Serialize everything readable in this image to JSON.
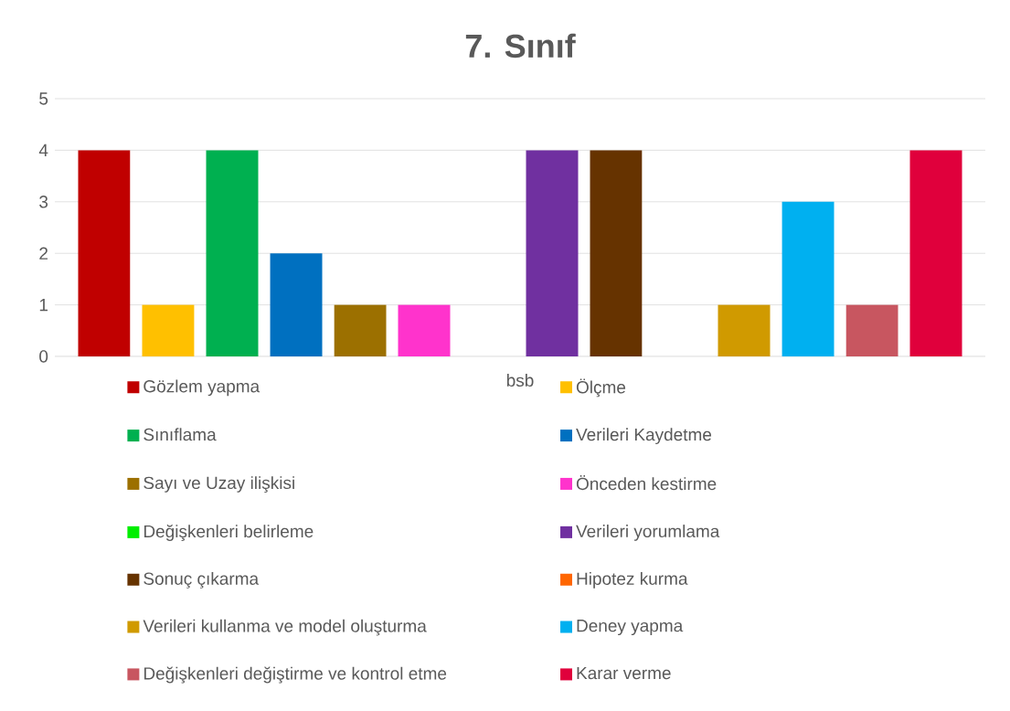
{
  "chart_data": {
    "type": "bar",
    "title": "7. Sınıf",
    "categories": [
      "bsb"
    ],
    "series": [
      {
        "name": "Gözlem yapma",
        "color": "#c00000",
        "values": [
          4
        ]
      },
      {
        "name": "Ölçme",
        "color": "#ffc000",
        "values": [
          1
        ]
      },
      {
        "name": "Sınıflama",
        "color": "#00b050",
        "values": [
          4
        ]
      },
      {
        "name": "Verileri Kaydetme",
        "color": "#0070c0",
        "values": [
          2
        ]
      },
      {
        "name": "Sayı ve Uzay ilişkisi",
        "color": "#9c7000",
        "values": [
          1
        ]
      },
      {
        "name": "Önceden kestirme",
        "color": "#ff33cc",
        "values": [
          1
        ]
      },
      {
        "name": "Değişkenleri belirleme",
        "color": "#00ee00",
        "values": [
          0
        ]
      },
      {
        "name": "Verileri yorumlama",
        "color": "#7030a0",
        "values": [
          4
        ]
      },
      {
        "name": "Sonuç çıkarma",
        "color": "#663300",
        "values": [
          4
        ]
      },
      {
        "name": "Hipotez kurma",
        "color": "#ff6600",
        "values": [
          0
        ]
      },
      {
        "name": "Verileri kullanma ve model oluşturma",
        "color": "#d09a00",
        "values": [
          1
        ]
      },
      {
        "name": "Deney yapma",
        "color": "#00b0f0",
        "values": [
          3
        ]
      },
      {
        "name": "Değişkenleri değiştirme ve kontrol etme",
        "color": "#c85660",
        "values": [
          1
        ]
      },
      {
        "name": "Karar verme",
        "color": "#e0003c",
        "values": [
          4
        ]
      }
    ],
    "ylim": [
      0,
      5
    ],
    "yticks": [
      0,
      1,
      2,
      3,
      4,
      5
    ],
    "grid": "y",
    "legend": "bottom"
  }
}
